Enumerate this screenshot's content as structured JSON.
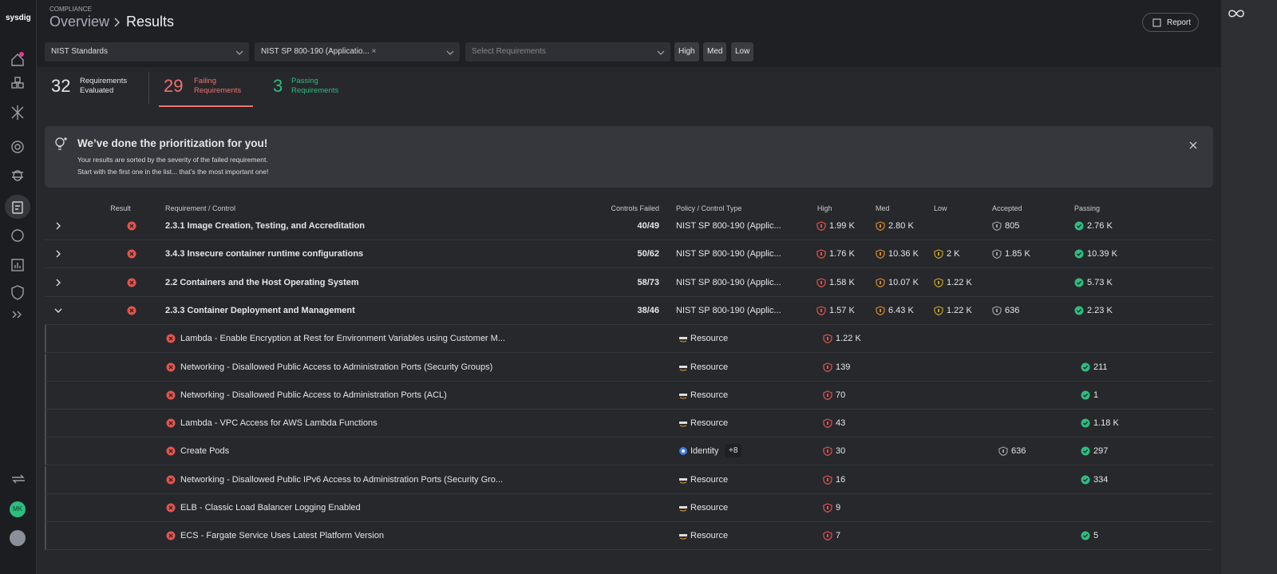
{
  "brand": "sysdig",
  "user": "MK",
  "header": {
    "section": "COMPLIANCE",
    "crumbs": [
      "Overview",
      "Results"
    ],
    "report": "Report"
  },
  "filters": {
    "standard": "NIST Standards",
    "framework": "NIST SP 800-190 (Applicatio...",
    "requirements": "Select Requirements",
    "severity": [
      "High",
      "Med",
      "Low"
    ]
  },
  "summary": [
    {
      "count": 32,
      "label": "Requirements Evaluated"
    },
    {
      "count": 29,
      "label": "Failing Requirements"
    },
    {
      "count": 3,
      "label": "Passing Requirements"
    }
  ],
  "banner": {
    "title": "We’ve done the prioritization for you!",
    "lines": [
      "Your results are sorted by the severity of the failed requirement.",
      "Start with the first one in the list... that’s the most important one!"
    ]
  },
  "table": {
    "columns": [
      "Result",
      "Requirement / Control",
      "Controls Failed",
      "Policy / Control Type",
      "High",
      "Med",
      "Low",
      "Accepted",
      "Passing"
    ],
    "rows": [
      {
        "requirement": "2.3.1 Image Creation, Testing, and Accreditation",
        "controls_failed": "40/49",
        "policy": "NIST SP 800-190 (Applic...",
        "high": "1.99 K",
        "med": "2.80 K",
        "accepted": "805",
        "passing": "2.76 K",
        "expanded": false
      },
      {
        "requirement": "3.4.3 Insecure container runtime configurations",
        "controls_failed": "50/62",
        "policy": "NIST SP 800-190 (Applic...",
        "high": "1.76 K",
        "med": "10.36 K",
        "low": "2 K",
        "accepted": "1.85 K",
        "passing": "10.39 K",
        "expanded": false
      },
      {
        "requirement": "2.2 Containers and the Host Operating System",
        "controls_failed": "58/73",
        "policy": "NIST SP 800-190 (Applic...",
        "high": "1.58 K",
        "med": "10.07 K",
        "low": "1.22 K",
        "passing": "5.73 K",
        "expanded": false
      },
      {
        "requirement": "2.3.3 Container Deployment and Management",
        "controls_failed": "38/46",
        "policy": "NIST SP 800-190 (Applic...",
        "high": "1.57 K",
        "med": "6.43 K",
        "low": "1.22 K",
        "accepted": "636",
        "passing": "2.23 K",
        "expanded": true
      }
    ],
    "controls": [
      {
        "name": "Lambda - Enable Encryption at Rest for Environment Variables using Customer M...",
        "type": "Resource",
        "high": "1.22 K"
      },
      {
        "name": "Networking - Disallowed Public Access to Administration Ports (Security Groups)",
        "type": "Resource",
        "high": "139",
        "passing": "211"
      },
      {
        "name": "Networking - Disallowed Public Access to Administration Ports (ACL)",
        "type": "Resource",
        "high": "70",
        "passing": "1"
      },
      {
        "name": "Lambda - VPC Access for AWS Lambda Functions",
        "type": "Resource",
        "high": "43",
        "passing": "1.18 K"
      },
      {
        "name": "Create Pods",
        "type": "Identity",
        "extra": "+8",
        "high": "30",
        "accepted": "636",
        "passing": "297"
      },
      {
        "name": "Networking - Disallowed Public IPv6 Access to Administration Ports (Security Gro...",
        "type": "Resource",
        "high": "16",
        "passing": "334"
      },
      {
        "name": "ELB - Classic Load Balancer Logging Enabled",
        "type": "Resource",
        "high": "9"
      },
      {
        "name": "ECS - Fargate Service Uses Latest Platform Version",
        "type": "Resource",
        "high": "7",
        "passing": "5"
      }
    ]
  }
}
